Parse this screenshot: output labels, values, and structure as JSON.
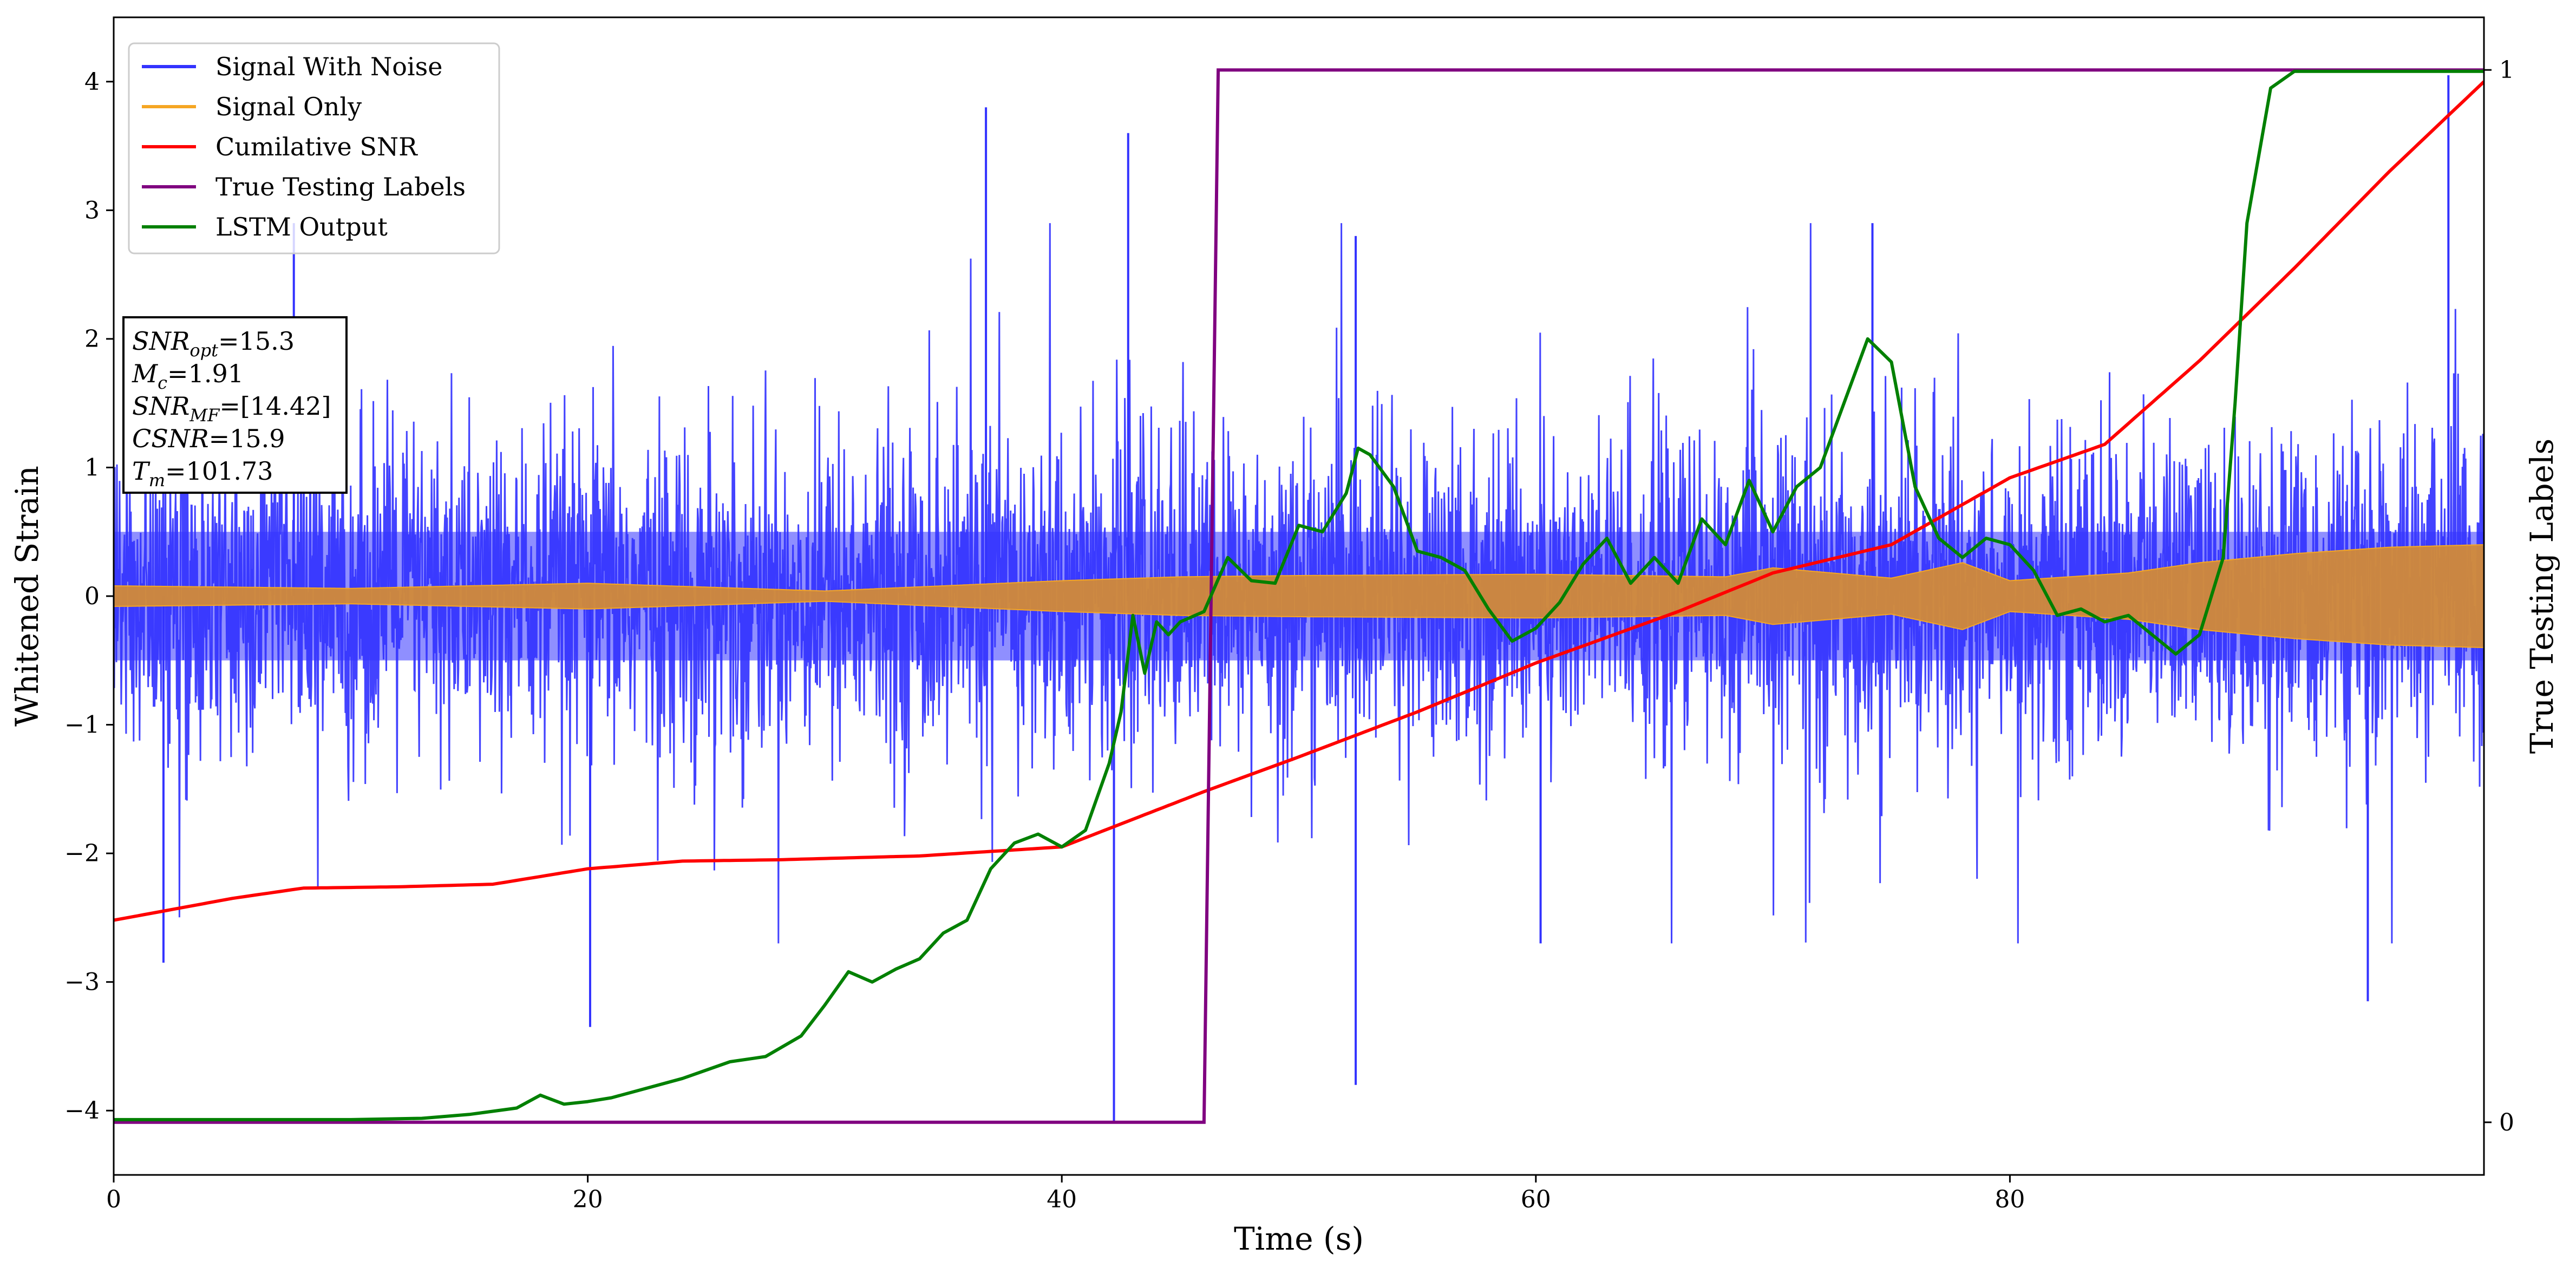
{
  "chart_data": {
    "type": "line",
    "xlabel": "Time (s)",
    "ylabel": "Whitened Strain",
    "y2label": "True Testing Labels",
    "xlim": [
      0,
      100
    ],
    "ylim": [
      -4.5,
      4.5
    ],
    "y2lim": [
      -0.05,
      1.05
    ],
    "x_ticks": [
      0,
      20,
      40,
      60,
      80
    ],
    "y_ticks": [
      -4,
      -3,
      -2,
      -1,
      0,
      1,
      2,
      3,
      4
    ],
    "y2_ticks": [
      0,
      1
    ],
    "legend_position": "top-left",
    "annotation": {
      "line1": {
        "base": "SNR",
        "sub": "opt",
        "rest": "=15.3"
      },
      "line2": {
        "base": "M",
        "sub": "c",
        "rest": "=1.91"
      },
      "line3": {
        "base": "SNR",
        "sub": "MF",
        "rest": "=[14.42]"
      },
      "line4": {
        "base": "CSNR",
        "sub": "",
        "rest": "=15.9"
      },
      "line5": {
        "base": "T",
        "sub": "m",
        "rest": "=101.73"
      }
    },
    "series": [
      {
        "name": "Signal With Noise",
        "color": "#3333ff",
        "style": "dense-noise",
        "band_core": [
          -0.5,
          0.5
        ],
        "band_typical": [
          -1.7,
          1.7
        ],
        "peaks": [
          {
            "x": 42.2,
            "y": -4.1
          },
          {
            "x": 42.8,
            "y": 3.6
          },
          {
            "x": 20.1,
            "y": -3.35
          },
          {
            "x": 52.4,
            "y": -3.8
          },
          {
            "x": 52.4,
            "y": 2.8
          },
          {
            "x": 98.5,
            "y": 4.05
          },
          {
            "x": 95.1,
            "y": -3.15
          },
          {
            "x": 36.8,
            "y": 3.8
          },
          {
            "x": 74.2,
            "y": 2.9
          },
          {
            "x": 7.6,
            "y": 2.9
          },
          {
            "x": 60.2,
            "y": -2.7
          },
          {
            "x": 2.1,
            "y": -2.85
          }
        ]
      },
      {
        "name": "Signal Only",
        "color": "#f5a623",
        "style": "envelope",
        "x": [
          0,
          10,
          20,
          30,
          40,
          45,
          50,
          60,
          68,
          70,
          75,
          78,
          80,
          85,
          88,
          92,
          96,
          100
        ],
        "amplitude": [
          0.08,
          0.06,
          0.1,
          0.04,
          0.12,
          0.15,
          0.16,
          0.17,
          0.15,
          0.22,
          0.14,
          0.26,
          0.12,
          0.18,
          0.26,
          0.33,
          0.38,
          0.4
        ]
      },
      {
        "name": "Cumilative SNR",
        "color": "#ff0000",
        "x": [
          0,
          5,
          8,
          12,
          16,
          20,
          24,
          28,
          34,
          40,
          46,
          50,
          55,
          60,
          66,
          70,
          75,
          80,
          84,
          88,
          92,
          96,
          100
        ],
        "y": [
          -2.52,
          -2.35,
          -2.27,
          -2.26,
          -2.24,
          -2.12,
          -2.06,
          -2.05,
          -2.02,
          -1.95,
          -1.52,
          -1.25,
          -0.9,
          -0.52,
          -0.12,
          0.18,
          0.4,
          0.92,
          1.18,
          1.83,
          2.55,
          3.3,
          4.0
        ]
      },
      {
        "name": "True Testing Labels",
        "color": "#800080",
        "axis": "right",
        "x": [
          0,
          46.0,
          46.6,
          100
        ],
        "y": [
          0,
          0,
          1,
          1
        ]
      },
      {
        "name": "LSTM Output",
        "color": "#008000",
        "axis": "left",
        "x": [
          0,
          10,
          13,
          15,
          17,
          18,
          19,
          20,
          21,
          22,
          24,
          26,
          27.5,
          29,
          30,
          31,
          32,
          33,
          34,
          35,
          36,
          37,
          38,
          39,
          40,
          41,
          42,
          42.5,
          43,
          43.5,
          44,
          44.5,
          45,
          46,
          47,
          48,
          49,
          50,
          51,
          52,
          52.5,
          53,
          54,
          55,
          56,
          57,
          58,
          59,
          60,
          61,
          62,
          63,
          64,
          65,
          66,
          67,
          68,
          69,
          70,
          71,
          72,
          73,
          74,
          75,
          76,
          77,
          78,
          79,
          80,
          81,
          82,
          83,
          84,
          85,
          86,
          87,
          88,
          89,
          89.5,
          90,
          91,
          92,
          94,
          96,
          100
        ],
        "y": [
          -4.07,
          -4.07,
          -4.06,
          -4.03,
          -3.98,
          -3.88,
          -3.95,
          -3.93,
          -3.9,
          -3.85,
          -3.75,
          -3.62,
          -3.58,
          -3.42,
          -3.18,
          -2.92,
          -3.0,
          -2.9,
          -2.82,
          -2.62,
          -2.52,
          -2.12,
          -1.92,
          -1.85,
          -1.95,
          -1.82,
          -1.3,
          -0.9,
          -0.15,
          -0.6,
          -0.2,
          -0.3,
          -0.2,
          -0.12,
          0.3,
          0.12,
          0.1,
          0.55,
          0.5,
          0.8,
          1.15,
          1.1,
          0.85,
          0.35,
          0.3,
          0.2,
          -0.1,
          -0.35,
          -0.25,
          -0.05,
          0.25,
          0.45,
          0.1,
          0.3,
          0.1,
          0.6,
          0.4,
          0.9,
          0.5,
          0.85,
          1.0,
          1.5,
          2.0,
          1.82,
          0.85,
          0.45,
          0.3,
          0.45,
          0.4,
          0.2,
          -0.15,
          -0.1,
          -0.2,
          -0.15,
          -0.3,
          -0.45,
          -0.3,
          0.3,
          1.5,
          2.9,
          3.95,
          4.08,
          4.08,
          4.08,
          4.08
        ]
      }
    ]
  }
}
